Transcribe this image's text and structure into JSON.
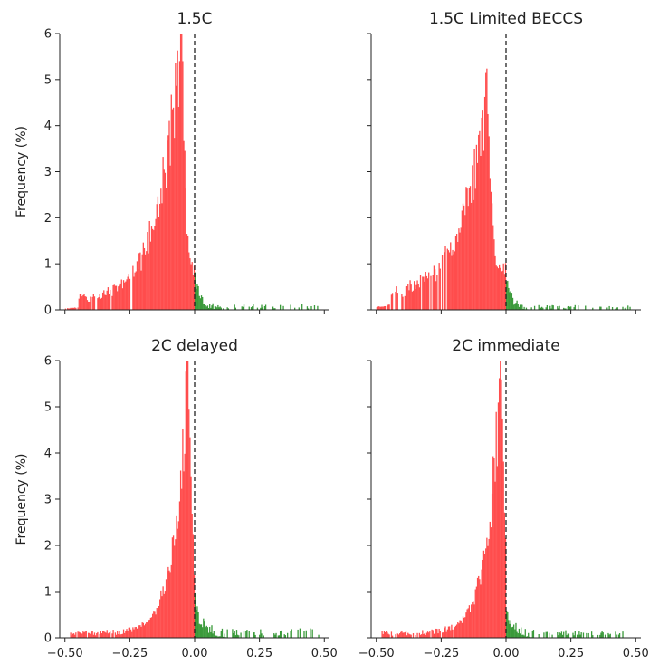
{
  "figure": {
    "ylabel": "Frequency (%)",
    "colors": {
      "negative": "#ff4d4d",
      "positive": "#3a9a3a",
      "zero_line": "#222222",
      "axis": "#222222"
    }
  },
  "chart_data": [
    {
      "type": "bar",
      "subtype": "histogram",
      "title": "1.5C",
      "ylabel": "Frequency (%)",
      "xlim": [
        -0.52,
        0.52
      ],
      "ylim": [
        0,
        6
      ],
      "xticks": [
        "-0.50",
        "-0.25",
        "0.00",
        "0.25",
        "0.50"
      ],
      "yticks": [
        "0",
        "1",
        "2",
        "3",
        "4",
        "5",
        "6"
      ],
      "show_xtick_labels": false,
      "show_ytick_labels": true,
      "bin_width": 0.004,
      "reference_line_x": 0,
      "peak_x": -0.05,
      "peak_y": 6.0,
      "left_scale": 0.085,
      "right_scale": 0.02,
      "left_floor": 0.18,
      "left_floor_extent": 0.45,
      "right_floor": 0.07,
      "right_floor_extent": 0.48,
      "seed": 11
    },
    {
      "type": "bar",
      "subtype": "histogram",
      "title": "1.5C Limited BECCS",
      "ylabel": "",
      "xlim": [
        -0.52,
        0.52
      ],
      "ylim": [
        0,
        6
      ],
      "xticks": [
        "-0.50",
        "-0.25",
        "0.00",
        "0.25",
        "0.50"
      ],
      "yticks": [
        "0",
        "1",
        "2",
        "3",
        "4",
        "5",
        "6"
      ],
      "show_xtick_labels": false,
      "show_ytick_labels": false,
      "bin_width": 0.004,
      "reference_line_x": 0,
      "peak_x": -0.07,
      "peak_y": 4.65,
      "left_scale": 0.1,
      "right_scale": 0.02,
      "left_floor": 0.25,
      "left_floor_extent": 0.45,
      "right_floor": 0.06,
      "right_floor_extent": 0.48,
      "seed": 23
    },
    {
      "type": "bar",
      "subtype": "histogram",
      "title": "2C delayed",
      "ylabel": "Frequency (%)",
      "xlim": [
        -0.52,
        0.52
      ],
      "ylim": [
        0,
        6
      ],
      "xticks": [
        "-0.50",
        "-0.25",
        "0.00",
        "0.25",
        "0.50"
      ],
      "yticks": [
        "0",
        "1",
        "2",
        "3",
        "4",
        "5",
        "6"
      ],
      "show_xtick_labels": true,
      "show_ytick_labels": true,
      "bin_width": 0.004,
      "reference_line_x": 0,
      "peak_x": -0.025,
      "peak_y": 6.0,
      "left_scale": 0.05,
      "right_scale": 0.03,
      "left_floor": 0.1,
      "left_floor_extent": 0.48,
      "right_floor": 0.12,
      "right_floor_extent": 0.48,
      "seed": 37
    },
    {
      "type": "bar",
      "subtype": "histogram",
      "title": "2C immediate",
      "ylabel": "",
      "xlim": [
        -0.52,
        0.52
      ],
      "ylim": [
        0,
        6
      ],
      "xticks": [
        "-0.50",
        "-0.25",
        "0.00",
        "0.25",
        "0.50"
      ],
      "yticks": [
        "0",
        "1",
        "2",
        "3",
        "4",
        "5",
        "6"
      ],
      "show_xtick_labels": true,
      "show_ytick_labels": false,
      "bin_width": 0.004,
      "reference_line_x": 0,
      "peak_x": -0.02,
      "peak_y": 6.0,
      "left_scale": 0.05,
      "right_scale": 0.025,
      "left_floor": 0.1,
      "left_floor_extent": 0.48,
      "right_floor": 0.1,
      "right_floor_extent": 0.45,
      "seed": 53
    }
  ]
}
